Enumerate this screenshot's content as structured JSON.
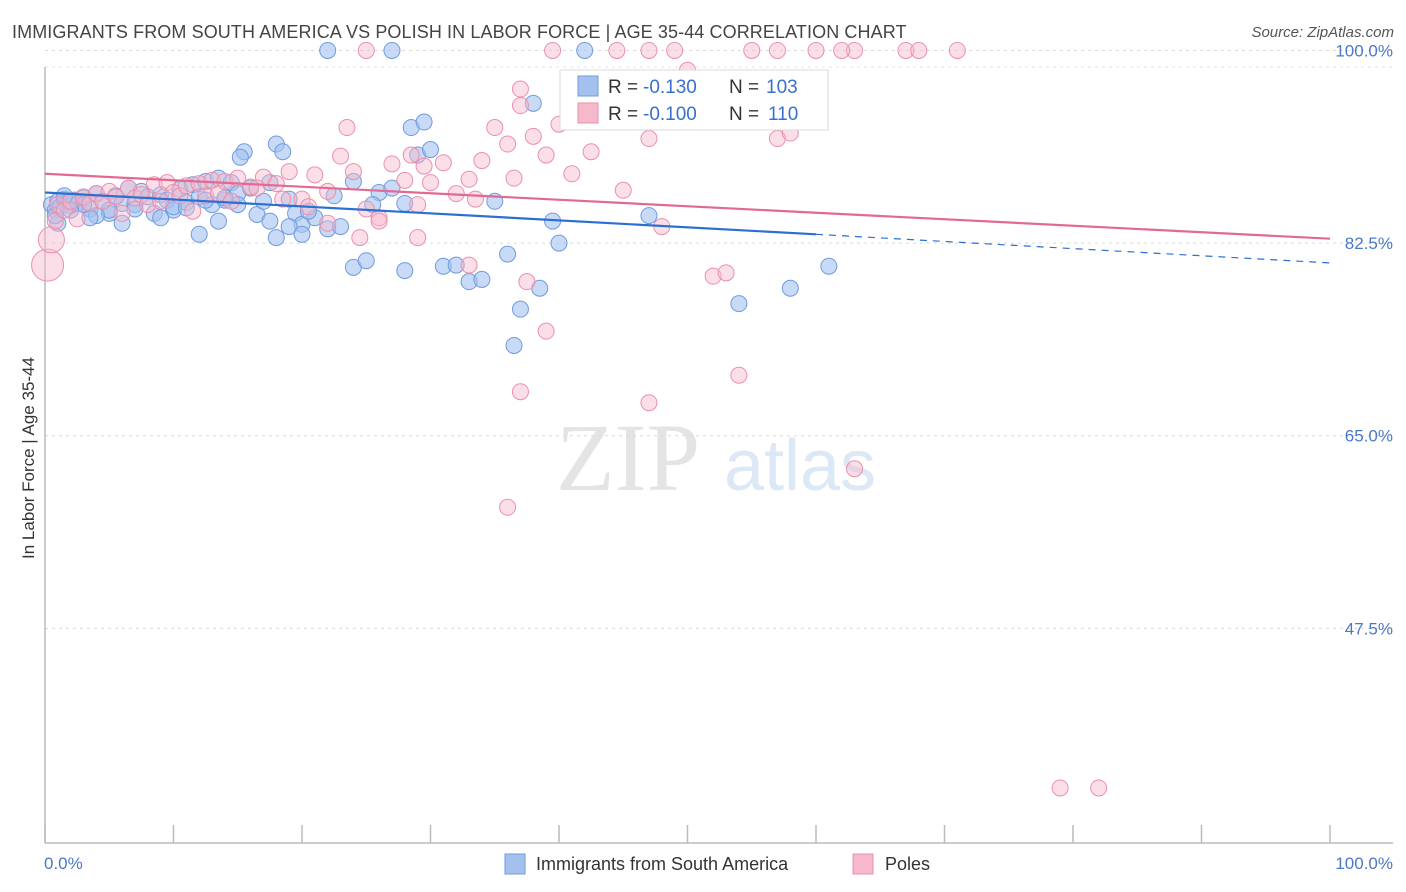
{
  "title": "IMMIGRANTS FROM SOUTH AMERICA VS POLISH IN LABOR FORCE | AGE 35-44 CORRELATION CHART",
  "source": "Source: ZipAtlas.com",
  "watermark": {
    "zip": "ZIP",
    "atlas": "atlas"
  },
  "colors": {
    "blue": "#a4c1ee",
    "blue_stroke": "#6f9be0",
    "blue_line": "#2b6fd0",
    "pink": "#f6b8cb",
    "pink_stroke": "#ec8fac",
    "pink_line": "#e26a92",
    "tick_label": "#4a78c8"
  },
  "stats_legend": {
    "r_label": "R =",
    "n_label": "N =",
    "rows": [
      {
        "series": "Immigrants from South America",
        "r": "-0.130",
        "n": "103"
      },
      {
        "series": "Poles",
        "r": "-0.100",
        "n": "110"
      }
    ]
  },
  "chart_data": {
    "type": "scatter",
    "xlabel": "",
    "ylabel": "In Labor Force | Age 35-44",
    "xlim": [
      0,
      100
    ],
    "ylim": [
      28,
      98.5
    ],
    "x_tick_labels": [
      "0.0%",
      "100.0%"
    ],
    "y_ticks": [
      47.5,
      65.0,
      82.5,
      100.0
    ],
    "y_tick_labels": [
      "47.5%",
      "65.0%",
      "82.5%",
      "100.0%"
    ],
    "grid": "horizontal dashed",
    "legend_position": "bottom",
    "series": [
      {
        "name": "Immigrants from South America",
        "color": "#a4c1ee",
        "trend": {
          "x": [
            0,
            60
          ],
          "y": [
            87.1,
            83.3
          ],
          "dashed_to": [
            100,
            80.7
          ]
        },
        "points": [
          [
            0.5,
            86.0
          ],
          [
            0.8,
            85.5
          ],
          [
            1.0,
            86.3
          ],
          [
            1.2,
            85.8
          ],
          [
            1.5,
            86.5
          ],
          [
            1.8,
            86.2
          ],
          [
            2.0,
            85.9
          ],
          [
            2.3,
            86.4
          ],
          [
            2.6,
            86.1
          ],
          [
            3.0,
            86.6
          ],
          [
            3.5,
            85.6
          ],
          [
            4.0,
            87.0
          ],
          [
            4.5,
            86.3
          ],
          [
            5.0,
            85.2
          ],
          [
            5.5,
            86.8
          ],
          [
            6.0,
            86.1
          ],
          [
            6.5,
            87.5
          ],
          [
            7.0,
            86.0
          ],
          [
            7.5,
            87.2
          ],
          [
            8.0,
            86.7
          ],
          [
            8.5,
            85.2
          ],
          [
            9.0,
            86.9
          ],
          [
            9.5,
            86.4
          ],
          [
            10.0,
            85.5
          ],
          [
            10.5,
            87.4
          ],
          [
            11.0,
            86.2
          ],
          [
            11.5,
            87.8
          ],
          [
            12.0,
            86.7
          ],
          [
            12.5,
            88.1
          ],
          [
            13.0,
            86.0
          ],
          [
            13.5,
            88.4
          ],
          [
            14.0,
            86.4
          ],
          [
            14.5,
            88.0
          ],
          [
            15.0,
            87.0
          ],
          [
            15.5,
            90.8
          ],
          [
            15.2,
            90.3
          ],
          [
            16.0,
            87.5
          ],
          [
            16.5,
            85.1
          ],
          [
            17.0,
            86.3
          ],
          [
            17.5,
            88.0
          ],
          [
            18.0,
            91.5
          ],
          [
            18.5,
            90.8
          ],
          [
            19.0,
            86.5
          ],
          [
            19.5,
            85.2
          ],
          [
            20.0,
            84.2
          ],
          [
            21.0,
            84.8
          ],
          [
            22.0,
            83.8
          ],
          [
            23.0,
            84.0
          ],
          [
            24.0,
            80.3
          ],
          [
            25.0,
            80.9
          ],
          [
            26.0,
            87.1
          ],
          [
            27.0,
            87.5
          ],
          [
            28.0,
            80.0
          ],
          [
            28.5,
            93.0
          ],
          [
            29.0,
            90.5
          ],
          [
            29.5,
            93.5
          ],
          [
            30.0,
            91.0
          ],
          [
            31.0,
            80.4
          ],
          [
            32.0,
            80.5
          ],
          [
            33.0,
            79.0
          ],
          [
            34.0,
            79.2
          ],
          [
            35.0,
            86.3
          ],
          [
            36.0,
            81.5
          ],
          [
            37.0,
            76.5
          ],
          [
            38.0,
            95.2
          ],
          [
            38.5,
            78.4
          ],
          [
            39.5,
            84.5
          ],
          [
            40.0,
            82.5
          ],
          [
            36.5,
            73.2
          ],
          [
            27.0,
            100.0
          ],
          [
            22.0,
            100.0
          ],
          [
            28.0,
            86.1
          ],
          [
            20.5,
            85.4
          ],
          [
            19.0,
            84.0
          ],
          [
            17.5,
            84.5
          ],
          [
            15.0,
            86.0
          ],
          [
            13.5,
            84.5
          ],
          [
            12.0,
            83.3
          ],
          [
            10.0,
            85.8
          ],
          [
            9.0,
            84.8
          ],
          [
            7.0,
            85.6
          ],
          [
            6.0,
            84.3
          ],
          [
            5.0,
            85.5
          ],
          [
            4.0,
            85.0
          ],
          [
            3.5,
            84.8
          ],
          [
            3.0,
            86.0
          ],
          [
            2.0,
            85.5
          ],
          [
            1.5,
            86.8
          ],
          [
            1.0,
            84.3
          ],
          [
            0.8,
            85.0
          ],
          [
            24.0,
            88.1
          ],
          [
            25.5,
            86.0
          ],
          [
            22.5,
            86.8
          ],
          [
            20.0,
            83.3
          ],
          [
            18.0,
            83.0
          ],
          [
            14.0,
            86.6
          ],
          [
            12.5,
            86.4
          ],
          [
            11.0,
            85.7
          ],
          [
            42.0,
            100.0
          ],
          [
            47.0,
            85.0
          ],
          [
            58.0,
            78.4
          ],
          [
            54.0,
            77.0
          ],
          [
            61.0,
            80.4
          ]
        ]
      },
      {
        "name": "Poles",
        "color": "#f6b8cb",
        "trend": {
          "x": [
            0,
            100
          ],
          "y": [
            88.8,
            82.9
          ]
        },
        "points": [
          [
            0.2,
            80.5
          ],
          [
            0.5,
            82.8
          ],
          [
            0.8,
            84.5
          ],
          [
            1.0,
            86.0
          ],
          [
            1.5,
            85.5
          ],
          [
            2.0,
            86.3
          ],
          [
            2.5,
            84.7
          ],
          [
            3.0,
            86.7
          ],
          [
            3.5,
            86.1
          ],
          [
            4.0,
            87.0
          ],
          [
            4.5,
            86.3
          ],
          [
            5.0,
            87.2
          ],
          [
            5.5,
            86.7
          ],
          [
            6.0,
            85.2
          ],
          [
            6.5,
            87.5
          ],
          [
            7.0,
            86.6
          ],
          [
            7.5,
            86.9
          ],
          [
            8.0,
            86.0
          ],
          [
            8.5,
            87.8
          ],
          [
            9.0,
            86.3
          ],
          [
            9.5,
            88.0
          ],
          [
            10.0,
            87.1
          ],
          [
            10.5,
            86.8
          ],
          [
            11.0,
            87.7
          ],
          [
            11.5,
            85.4
          ],
          [
            12.0,
            87.9
          ],
          [
            12.5,
            86.8
          ],
          [
            13.0,
            88.2
          ],
          [
            13.5,
            87.0
          ],
          [
            14.0,
            88.1
          ],
          [
            14.5,
            86.3
          ],
          [
            15.0,
            88.4
          ],
          [
            16.0,
            87.6
          ],
          [
            17.0,
            88.5
          ],
          [
            18.0,
            87.9
          ],
          [
            19.0,
            89.0
          ],
          [
            20.0,
            86.5
          ],
          [
            21.0,
            88.7
          ],
          [
            22.0,
            87.2
          ],
          [
            23.0,
            90.4
          ],
          [
            24.0,
            89.0
          ],
          [
            25.0,
            85.6
          ],
          [
            26.0,
            84.8
          ],
          [
            27.0,
            89.7
          ],
          [
            28.0,
            88.2
          ],
          [
            28.5,
            90.5
          ],
          [
            29.0,
            86.0
          ],
          [
            29.5,
            89.5
          ],
          [
            30.0,
            88.0
          ],
          [
            31.0,
            89.8
          ],
          [
            32.0,
            87.0
          ],
          [
            33.0,
            88.3
          ],
          [
            33.5,
            86.5
          ],
          [
            34.0,
            90.0
          ],
          [
            35.0,
            93.0
          ],
          [
            36.0,
            91.5
          ],
          [
            36.5,
            88.4
          ],
          [
            37.0,
            95.0
          ],
          [
            38.0,
            92.2
          ],
          [
            39.0,
            90.5
          ],
          [
            40.0,
            93.3
          ],
          [
            41.0,
            88.8
          ],
          [
            42.5,
            90.8
          ],
          [
            43.0,
            97.5
          ],
          [
            44.5,
            100.0
          ],
          [
            45.0,
            87.3
          ],
          [
            45.5,
            97.5
          ],
          [
            46.0,
            96.0
          ],
          [
            47.0,
            92.0
          ],
          [
            47.5,
            97.0
          ],
          [
            48.0,
            84.0
          ],
          [
            49.0,
            100.0
          ],
          [
            50.0,
            98.2
          ],
          [
            51.0,
            94.5
          ],
          [
            52.0,
            79.5
          ],
          [
            53.0,
            79.8
          ],
          [
            54.0,
            70.5
          ],
          [
            56.0,
            94.5
          ],
          [
            57.0,
            92.0
          ],
          [
            58.0,
            92.5
          ],
          [
            59.0,
            97.0
          ],
          [
            60.0,
            100.0
          ],
          [
            47.0,
            68.0
          ],
          [
            37.0,
            69.0
          ],
          [
            39.0,
            74.5
          ],
          [
            33.0,
            80.5
          ],
          [
            37.5,
            79.0
          ],
          [
            29.0,
            83.0
          ],
          [
            26.0,
            84.5
          ],
          [
            24.5,
            83.0
          ],
          [
            22.0,
            84.3
          ],
          [
            20.5,
            85.8
          ],
          [
            18.5,
            86.5
          ],
          [
            16.5,
            87.5
          ],
          [
            23.5,
            93.0
          ],
          [
            36.0,
            58.5
          ],
          [
            37.0,
            96.5
          ],
          [
            25.0,
            100.0
          ],
          [
            47.0,
            100.0
          ],
          [
            55.0,
            100.0
          ],
          [
            57.0,
            100.0
          ],
          [
            63.0,
            100.0
          ],
          [
            67.0,
            100.0
          ],
          [
            62.0,
            100.0
          ],
          [
            79.0,
            33.0
          ],
          [
            82.0,
            33.0
          ],
          [
            68.0,
            100.0
          ],
          [
            71.0,
            100.0
          ],
          [
            39.5,
            100.0
          ],
          [
            63.0,
            62.0
          ]
        ]
      }
    ]
  },
  "bottom_legend": [
    {
      "label": "Immigrants from South America"
    },
    {
      "label": "Poles"
    }
  ]
}
